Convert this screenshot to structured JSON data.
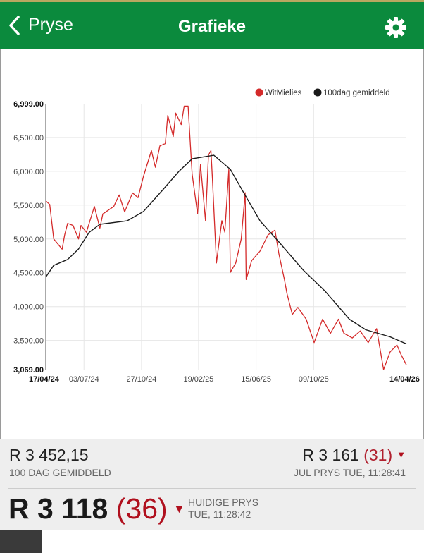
{
  "header": {
    "back_label": "Pryse",
    "title": "Grafieke",
    "settings_icon": "gear-icon",
    "color": "#0b8a3d"
  },
  "legend": {
    "series1": "WitMielies",
    "series2": "100dag gemiddeld"
  },
  "chart_data": {
    "type": "line",
    "ylim": [
      3069,
      6999
    ],
    "xlim": [
      "2024-04-17",
      "2026-04-14"
    ],
    "y_ticks": [
      "6,999.00",
      "6,500.00",
      "6,000.00",
      "5,500.00",
      "5,000.00",
      "4,500.00",
      "4,000.00",
      "3,500.00",
      "3,069.00"
    ],
    "y_tick_values": [
      6999,
      6500,
      6000,
      5500,
      5000,
      4500,
      4000,
      3500,
      3069
    ],
    "x_ticks": [
      "17/04/24",
      "03/07/24",
      "27/10/24",
      "19/02/25",
      "15/06/25",
      "09/10/25",
      "14/04/26"
    ],
    "x_tick_dates": [
      "2024-04-17",
      "2024-07-03",
      "2024-10-27",
      "2025-02-19",
      "2025-06-15",
      "2025-10-09",
      "2026-04-14"
    ],
    "grid": true,
    "legend_position": "top-right",
    "series": [
      {
        "name": "WitMielies",
        "color": "#d42a2a",
        "points": [
          [
            "2024-04-17",
            5562
          ],
          [
            "2024-04-25",
            5510
          ],
          [
            "2024-05-03",
            5000
          ],
          [
            "2024-05-20",
            4850
          ],
          [
            "2024-05-25",
            5060
          ],
          [
            "2024-05-31",
            5230
          ],
          [
            "2024-06-11",
            5200
          ],
          [
            "2024-06-22",
            5000
          ],
          [
            "2024-06-27",
            5200
          ],
          [
            "2024-07-08",
            5100
          ],
          [
            "2024-07-24",
            5480
          ],
          [
            "2024-08-04",
            5160
          ],
          [
            "2024-08-10",
            5370
          ],
          [
            "2024-09-01",
            5480
          ],
          [
            "2024-09-12",
            5650
          ],
          [
            "2024-09-23",
            5400
          ],
          [
            "2024-10-09",
            5680
          ],
          [
            "2024-10-20",
            5610
          ],
          [
            "2024-10-31",
            5925
          ],
          [
            "2024-11-16",
            6306
          ],
          [
            "2024-11-24",
            6060
          ],
          [
            "2024-12-03",
            6376
          ],
          [
            "2024-12-14",
            6410
          ],
          [
            "2024-12-19",
            6826
          ],
          [
            "2024-12-30",
            6515
          ],
          [
            "2025-01-04",
            6860
          ],
          [
            "2025-01-15",
            6690
          ],
          [
            "2025-01-21",
            6964
          ],
          [
            "2025-01-29",
            6964
          ],
          [
            "2025-02-01",
            6584
          ],
          [
            "2025-02-06",
            5960
          ],
          [
            "2025-02-17",
            5370
          ],
          [
            "2025-02-23",
            6100
          ],
          [
            "2025-03-05",
            5270
          ],
          [
            "2025-03-11",
            6240
          ],
          [
            "2025-03-16",
            6306
          ],
          [
            "2025-03-19",
            5890
          ],
          [
            "2025-03-27",
            4645
          ],
          [
            "2025-04-07",
            5270
          ],
          [
            "2025-04-13",
            5100
          ],
          [
            "2025-04-21",
            6030
          ],
          [
            "2025-04-24",
            4506
          ],
          [
            "2025-05-05",
            4645
          ],
          [
            "2025-05-16",
            5000
          ],
          [
            "2025-05-24",
            5683
          ],
          [
            "2025-05-26",
            4400
          ],
          [
            "2025-06-06",
            4680
          ],
          [
            "2025-06-23",
            4820
          ],
          [
            "2025-07-09",
            5060
          ],
          [
            "2025-07-23",
            5130
          ],
          [
            "2025-07-31",
            4780
          ],
          [
            "2025-08-11",
            4400
          ],
          [
            "2025-08-16",
            4200
          ],
          [
            "2025-08-27",
            3883
          ],
          [
            "2025-09-07",
            3988
          ],
          [
            "2025-09-24",
            3814
          ],
          [
            "2025-10-10",
            3468
          ],
          [
            "2025-10-27",
            3814
          ],
          [
            "2025-11-12",
            3606
          ],
          [
            "2025-11-28",
            3814
          ],
          [
            "2025-12-09",
            3606
          ],
          [
            "2025-12-26",
            3537
          ],
          [
            "2026-01-11",
            3640
          ],
          [
            "2026-01-27",
            3468
          ],
          [
            "2026-02-13",
            3675
          ],
          [
            "2026-02-27",
            3069
          ],
          [
            "2026-03-12",
            3329
          ],
          [
            "2026-03-26",
            3433
          ],
          [
            "2026-04-03",
            3294
          ],
          [
            "2026-04-14",
            3138
          ]
        ]
      },
      {
        "name": "100dag gemiddeld",
        "color": "#1a1a1a",
        "points": [
          [
            "2024-04-17",
            4437
          ],
          [
            "2024-05-03",
            4610
          ],
          [
            "2024-05-31",
            4696
          ],
          [
            "2024-06-22",
            4852
          ],
          [
            "2024-07-13",
            5094
          ],
          [
            "2024-08-04",
            5216
          ],
          [
            "2024-09-28",
            5268
          ],
          [
            "2024-10-31",
            5406
          ],
          [
            "2024-12-08",
            5718
          ],
          [
            "2025-01-10",
            5995
          ],
          [
            "2025-02-06",
            6185
          ],
          [
            "2025-03-22",
            6237
          ],
          [
            "2025-04-24",
            6030
          ],
          [
            "2025-05-21",
            5683
          ],
          [
            "2025-06-23",
            5268
          ],
          [
            "2025-07-31",
            4956
          ],
          [
            "2025-09-18",
            4540
          ],
          [
            "2025-11-01",
            4229
          ],
          [
            "2025-12-20",
            3814
          ],
          [
            "2026-01-22",
            3658
          ],
          [
            "2026-03-12",
            3554
          ],
          [
            "2026-04-14",
            3450
          ]
        ]
      }
    ]
  },
  "summary": {
    "avg_value": "R 3 452,15",
    "avg_label": "100 DAG GEMIDDELD",
    "jul_value": "R 3 161",
    "jul_change": "(31)",
    "jul_label": "JUL PRYS TUE, 11:28:41",
    "current_value": "R 3 118",
    "current_change": "(36)",
    "current_label": "HUIDIGE PRYS",
    "current_time": "TUE, 11:28:42",
    "down_color": "#b0101e"
  }
}
